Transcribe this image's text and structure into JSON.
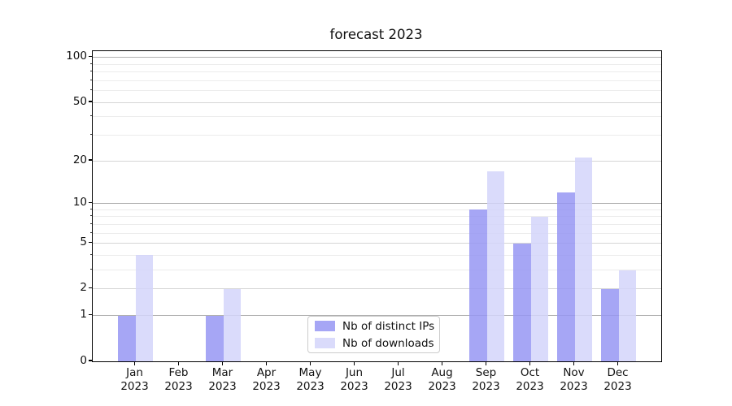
{
  "chart_data": {
    "type": "bar",
    "title": "forecast 2023",
    "x_tick_months": [
      "Jan",
      "Feb",
      "Mar",
      "Apr",
      "May",
      "Jun",
      "Jul",
      "Aug",
      "Sep",
      "Oct",
      "Nov",
      "Dec"
    ],
    "x_tick_year": "2023",
    "series": [
      {
        "name": "Nb of distinct IPs",
        "color": "rgba(150,150,243,0.85)",
        "color_hex": "#a9a9f5",
        "values": [
          1,
          0,
          1,
          0,
          0,
          0,
          0,
          0,
          9,
          5,
          12,
          2
        ]
      },
      {
        "name": "Nb of downloads",
        "color": "rgba(211,213,250,0.85)",
        "color_hex": "#d9dbfa",
        "values": [
          4,
          0,
          2,
          0,
          0,
          0,
          0,
          0,
          17,
          8,
          21,
          3
        ]
      }
    ],
    "yscale": "log1p",
    "ylim": [
      0,
      110
    ],
    "ytick_labels": [
      0,
      1,
      2,
      5,
      10,
      20,
      50,
      100
    ],
    "decade_ticks": [
      1,
      10,
      100
    ],
    "minor_gridlines": [
      3,
      4,
      6,
      7,
      8,
      9,
      30,
      40,
      60,
      70,
      80,
      90
    ],
    "grid": "on",
    "legend": {
      "location": "lower center"
    }
  },
  "colors": {
    "background": "#ffffff",
    "spine": "#000000",
    "grid_decade": "#b0b0b0",
    "grid_major": "#d6d6d6",
    "grid_minor": "#ececec",
    "text": "#111111",
    "legend_border": "#cccccc"
  }
}
